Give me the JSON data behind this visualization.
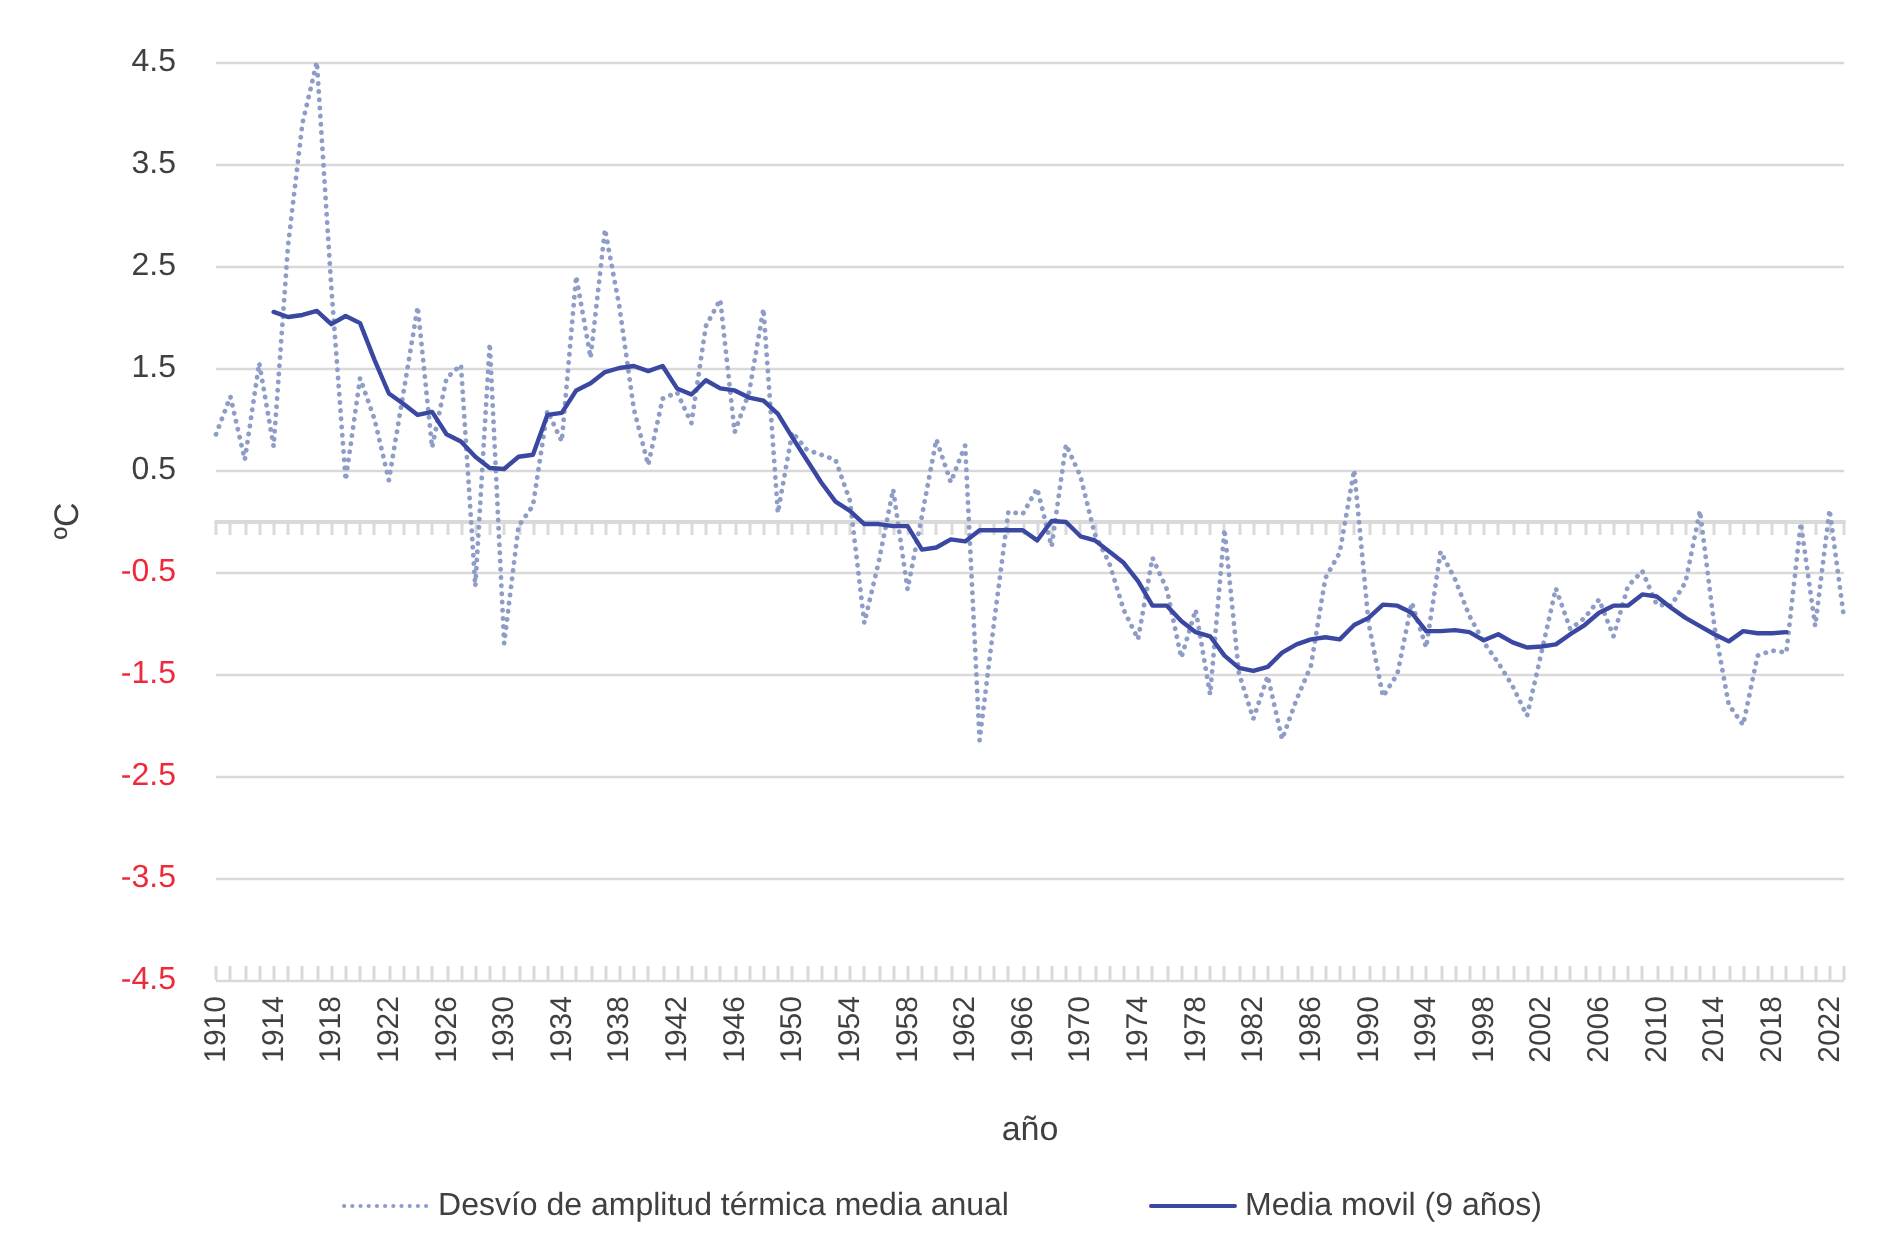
{
  "chart_data": {
    "type": "line",
    "xlabel": "año",
    "ylabel": "ºC",
    "categories": [
      "1910",
      null,
      null,
      null,
      "1914",
      null,
      null,
      null,
      "1918",
      null,
      null,
      null,
      "1922",
      null,
      null,
      null,
      "1926",
      null,
      null,
      null,
      "1930",
      null,
      null,
      null,
      "1934",
      null,
      null,
      null,
      "1938",
      null,
      null,
      null,
      "1942",
      null,
      null,
      null,
      "1946",
      null,
      null,
      null,
      "1950",
      null,
      null,
      null,
      "1954",
      null,
      null,
      null,
      "1958",
      null,
      null,
      null,
      "1962",
      null,
      null,
      null,
      "1966",
      null,
      null,
      null,
      "1970",
      null,
      null,
      null,
      "1974",
      null,
      null,
      null,
      "1978",
      null,
      null,
      null,
      "1982",
      null,
      null,
      null,
      "1986",
      null,
      null,
      null,
      "1990",
      null,
      null,
      null,
      "1994",
      null,
      null,
      null,
      "1998",
      null,
      null,
      null,
      "2002",
      null,
      null,
      null,
      "2006",
      null,
      null,
      null,
      "2010",
      null,
      null,
      null,
      "2014",
      null,
      null,
      null,
      "2018",
      null,
      null,
      null,
      "2022",
      null
    ],
    "series": [
      {
        "name": "Desvío de amplitud térmica media anual",
        "color": "#8e9cc8",
        "line_style": "dotted",
        "values": [
          0.85,
          1.22,
          0.6,
          1.55,
          0.73,
          2.7,
          3.9,
          4.5,
          2.3,
          0.4,
          1.4,
          1.0,
          0.4,
          1.25,
          2.1,
          0.72,
          1.4,
          1.53,
          -0.64,
          1.74,
          -1.2,
          -0.05,
          0.15,
          1.08,
          0.78,
          2.4,
          1.6,
          2.86,
          2.1,
          1.1,
          0.55,
          1.2,
          1.26,
          0.96,
          1.91,
          2.17,
          0.87,
          1.26,
          2.08,
          0.08,
          0.87,
          0.7,
          0.65,
          0.6,
          0.2,
          -1.0,
          -0.4,
          0.31,
          -0.67,
          0.05,
          0.8,
          0.38,
          0.74,
          -2.15,
          -1.0,
          0.09,
          0.07,
          0.32,
          -0.25,
          0.75,
          0.44,
          -0.13,
          -0.41,
          -0.87,
          -1.16,
          -0.36,
          -0.67,
          -1.34,
          -0.87,
          -1.7,
          -0.08,
          -1.49,
          -1.94,
          -1.52,
          -2.14,
          -1.75,
          -1.42,
          -0.56,
          -0.31,
          0.5,
          -1.0,
          -1.72,
          -1.5,
          -0.8,
          -1.24,
          -0.3,
          -0.57,
          -0.93,
          -1.19,
          -1.39,
          -1.62,
          -1.91,
          -1.29,
          -0.66,
          -1.06,
          -0.95,
          -0.77,
          -1.13,
          -0.64,
          -0.49,
          -0.82,
          -0.83,
          -0.6,
          0.1,
          -1.03,
          -1.8,
          -2.0,
          -1.32,
          -1.27,
          -1.29,
          -0.02,
          -1.03,
          0.11,
          -0.95
        ]
      },
      {
        "name": "Media movil (9 años)",
        "color": "#3a48a2",
        "line_style": "solid",
        "values": [
          null,
          null,
          null,
          null,
          2.05,
          2.0,
          2.02,
          2.06,
          1.93,
          2.01,
          1.94,
          1.58,
          1.25,
          1.15,
          1.04,
          1.07,
          0.85,
          0.78,
          0.63,
          0.52,
          0.51,
          0.63,
          0.65,
          1.04,
          1.06,
          1.28,
          1.35,
          1.46,
          1.5,
          1.52,
          1.47,
          1.52,
          1.3,
          1.24,
          1.38,
          1.3,
          1.28,
          1.21,
          1.18,
          1.05,
          0.82,
          0.6,
          0.38,
          0.19,
          0.1,
          -0.03,
          -0.03,
          -0.05,
          -0.05,
          -0.28,
          -0.26,
          -0.18,
          -0.2,
          -0.09,
          -0.09,
          -0.09,
          -0.09,
          -0.19,
          0.0,
          -0.01,
          -0.15,
          -0.19,
          -0.3,
          -0.41,
          -0.59,
          -0.83,
          -0.83,
          -0.98,
          -1.09,
          -1.13,
          -1.32,
          -1.44,
          -1.47,
          -1.43,
          -1.29,
          -1.21,
          -1.16,
          -1.14,
          -1.16,
          -1.02,
          -0.95,
          -0.82,
          -0.83,
          -0.9,
          -1.08,
          -1.08,
          -1.07,
          -1.09,
          -1.17,
          -1.11,
          -1.19,
          -1.24,
          -1.23,
          -1.21,
          -1.11,
          -1.02,
          -0.9,
          -0.83,
          -0.83,
          -0.72,
          -0.74,
          -0.85,
          -0.95,
          -1.03,
          -1.11,
          -1.18,
          -1.08,
          -1.1,
          -1.1,
          -1.09,
          null,
          null,
          null,
          null
        ]
      }
    ],
    "ylim": [
      -4.5,
      4.5
    ],
    "yticks": [
      -4.5,
      -3.5,
      -2.5,
      -1.5,
      -0.5,
      0.5,
      1.5,
      2.5,
      3.5,
      4.5
    ],
    "grid": "y",
    "legend": "bottom",
    "marker": "none"
  }
}
